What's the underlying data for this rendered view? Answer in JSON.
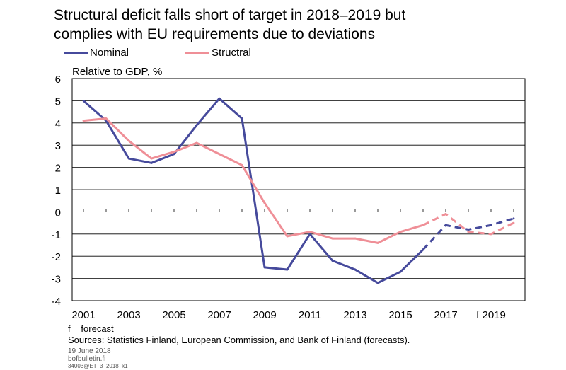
{
  "title_line1": "Structural deficit falls short of target in 2018–2019 but",
  "title_line2": "complies with EU requirements due to deviations",
  "legend": [
    {
      "label": "Nominal",
      "color": "#464a9c"
    },
    {
      "label": "Structral",
      "color": "#ef8f97"
    }
  ],
  "note_forecast": "f = forecast",
  "sources": "Sources: Statistics Finland, European Commission, and Bank of Finland (forecasts).",
  "date": "19 June 2018",
  "site": "bofbulletin.fi",
  "code": "34003@ET_3_2018_k1",
  "chart_data": {
    "type": "line",
    "ylabel": "Relative to GDP, %",
    "ylim": [
      -4,
      6
    ],
    "yticks": [
      -4,
      -3,
      -2,
      -1,
      0,
      1,
      2,
      3,
      4,
      5,
      6
    ],
    "x": [
      2001,
      2002,
      2003,
      2004,
      2005,
      2006,
      2007,
      2008,
      2009,
      2010,
      2011,
      2012,
      2013,
      2014,
      2015,
      2016,
      2017,
      2018,
      2019,
      2020
    ],
    "xtick_labels": [
      {
        "year": 2001,
        "label": "2001"
      },
      {
        "year": 2003,
        "label": "2003"
      },
      {
        "year": 2005,
        "label": "2005"
      },
      {
        "year": 2007,
        "label": "2007"
      },
      {
        "year": 2009,
        "label": "2009"
      },
      {
        "year": 2011,
        "label": "2011"
      },
      {
        "year": 2013,
        "label": "2013"
      },
      {
        "year": 2015,
        "label": "2015"
      },
      {
        "year": 2017,
        "label": "2017"
      },
      {
        "year": 2019,
        "label": "f 2019"
      }
    ],
    "forecast_from": 2016,
    "grid": true,
    "series": [
      {
        "name": "Nominal",
        "color": "#464a9c",
        "values": [
          5.0,
          4.1,
          2.4,
          2.2,
          2.6,
          3.9,
          5.1,
          4.2,
          -2.5,
          -2.6,
          -1.0,
          -2.2,
          -2.6,
          -3.2,
          -2.7,
          -1.7,
          -0.6,
          -0.8,
          -0.6,
          -0.3
        ]
      },
      {
        "name": "Structral",
        "color": "#ef8f97",
        "values": [
          4.1,
          4.2,
          3.2,
          2.4,
          2.7,
          3.1,
          2.6,
          2.1,
          0.4,
          -1.1,
          -0.9,
          -1.2,
          -1.2,
          -1.4,
          -0.9,
          -0.6,
          -0.1,
          -0.9,
          -1.0,
          -0.5
        ]
      }
    ]
  }
}
